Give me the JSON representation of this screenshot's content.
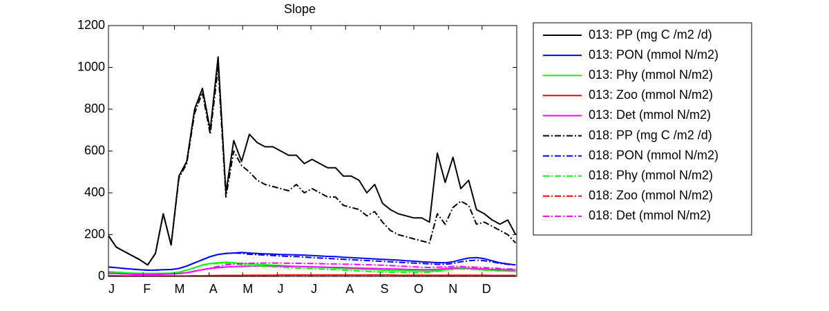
{
  "chart_data": {
    "type": "line",
    "title": "Slope",
    "x": [
      1,
      8,
      15,
      22,
      29,
      36,
      43,
      50,
      57,
      64,
      71,
      78,
      85,
      92,
      99,
      106,
      113,
      120,
      127,
      134,
      141,
      148,
      155,
      162,
      169,
      176,
      183,
      190,
      197,
      204,
      211,
      218,
      225,
      232,
      239,
      246,
      253,
      260,
      267,
      274,
      281,
      288,
      295,
      302,
      309,
      316,
      323,
      330,
      337,
      344,
      351,
      358,
      365
    ],
    "xlim": [
      1,
      366
    ],
    "xticks": [
      {
        "value": 1,
        "label": "J"
      },
      {
        "value": 32,
        "label": "F"
      },
      {
        "value": 60,
        "label": "M"
      },
      {
        "value": 91,
        "label": "A"
      },
      {
        "value": 121,
        "label": "M"
      },
      {
        "value": 152,
        "label": "J"
      },
      {
        "value": 182,
        "label": "J"
      },
      {
        "value": 213,
        "label": "A"
      },
      {
        "value": 244,
        "label": "S"
      },
      {
        "value": 274,
        "label": "O"
      },
      {
        "value": 305,
        "label": "N"
      },
      {
        "value": 335,
        "label": "D"
      }
    ],
    "ylim": [
      0,
      1200
    ],
    "yticks": [
      0,
      200,
      400,
      600,
      800,
      1000,
      1200
    ],
    "grid": false,
    "legend": "outside-right",
    "series": [
      {
        "name": "013: PP (mg C /m2 /d)",
        "color": "#000000",
        "dash": "solid",
        "values": [
          195,
          140,
          120,
          100,
          80,
          55,
          110,
          300,
          150,
          480,
          550,
          800,
          900,
          700,
          1050,
          400,
          650,
          550,
          680,
          640,
          620,
          620,
          600,
          580,
          580,
          540,
          560,
          540,
          520,
          520,
          480,
          480,
          460,
          400,
          440,
          350,
          320,
          300,
          290,
          280,
          280,
          260,
          590,
          450,
          570,
          420,
          460,
          320,
          300,
          270,
          250,
          270,
          200
        ]
      },
      {
        "name": "013: PON (mmol N/m2)",
        "color": "#0000ff",
        "dash": "solid",
        "values": [
          45,
          42,
          38,
          35,
          32,
          30,
          30,
          32,
          33,
          38,
          50,
          65,
          80,
          95,
          105,
          110,
          112,
          115,
          112,
          110,
          108,
          107,
          105,
          104,
          103,
          102,
          100,
          98,
          96,
          95,
          92,
          90,
          88,
          86,
          84,
          82,
          80,
          78,
          75,
          73,
          70,
          68,
          66,
          65,
          70,
          80,
          88,
          90,
          85,
          75,
          65,
          60,
          55
        ]
      },
      {
        "name": "013: Phy (mmol N/m2)",
        "color": "#00ff00",
        "dash": "solid",
        "values": [
          22,
          20,
          18,
          16,
          15,
          14,
          14,
          15,
          16,
          20,
          30,
          42,
          55,
          62,
          65,
          68,
          65,
          62,
          60,
          58,
          56,
          54,
          52,
          50,
          48,
          46,
          45,
          44,
          42,
          40,
          38,
          36,
          35,
          33,
          32,
          30,
          29,
          28,
          27,
          26,
          25,
          25,
          28,
          32,
          36,
          38,
          38,
          35,
          32,
          30,
          28,
          26,
          25
        ]
      },
      {
        "name": "013: Zoo (mmol N/m2)",
        "color": "#ff0000",
        "dash": "solid",
        "values": [
          3,
          3,
          2,
          2,
          2,
          2,
          2,
          2,
          2,
          2,
          2,
          3,
          3,
          4,
          4,
          5,
          5,
          5,
          6,
          6,
          6,
          6,
          7,
          7,
          7,
          7,
          7,
          7,
          7,
          7,
          7,
          7,
          7,
          7,
          7,
          7,
          7,
          6,
          6,
          6,
          6,
          6,
          6,
          6,
          6,
          6,
          6,
          6,
          6,
          5,
          5,
          5,
          5
        ]
      },
      {
        "name": "013: Det (mmol N/m2)",
        "color": "#ff00ff",
        "dash": "solid",
        "values": [
          15,
          14,
          12,
          11,
          10,
          10,
          10,
          11,
          12,
          14,
          18,
          25,
          32,
          38,
          42,
          45,
          47,
          48,
          49,
          50,
          50,
          50,
          49,
          48,
          48,
          47,
          46,
          45,
          44,
          43,
          42,
          41,
          40,
          39,
          38,
          37,
          36,
          35,
          34,
          33,
          32,
          32,
          34,
          38,
          40,
          40,
          39,
          37,
          35,
          33,
          32,
          31,
          30
        ]
      },
      {
        "name": "018: PP (mg C /m2 /d)",
        "color": "#000000",
        "dash": "dashdot",
        "values": [
          195,
          140,
          120,
          100,
          80,
          55,
          110,
          300,
          150,
          470,
          540,
          780,
          880,
          680,
          1000,
          380,
          600,
          530,
          500,
          460,
          440,
          430,
          420,
          410,
          440,
          400,
          420,
          400,
          380,
          380,
          340,
          330,
          320,
          290,
          310,
          260,
          220,
          200,
          190,
          180,
          170,
          160,
          300,
          250,
          330,
          360,
          340,
          250,
          260,
          240,
          220,
          200,
          160
        ]
      },
      {
        "name": "018: PON (mmol N/m2)",
        "color": "#0000ff",
        "dash": "dashdot",
        "values": [
          45,
          42,
          38,
          35,
          32,
          30,
          30,
          32,
          33,
          38,
          50,
          65,
          80,
          95,
          105,
          110,
          112,
          110,
          106,
          104,
          102,
          100,
          98,
          96,
          95,
          93,
          90,
          88,
          86,
          84,
          82,
          80,
          78,
          76,
          74,
          72,
          70,
          68,
          66,
          64,
          62,
          60,
          58,
          58,
          62,
          70,
          75,
          78,
          75,
          70,
          62,
          58,
          55
        ]
      },
      {
        "name": "018: Phy (mmol N/m2)",
        "color": "#00ff00",
        "dash": "dashdot",
        "values": [
          22,
          20,
          18,
          16,
          15,
          14,
          14,
          15,
          16,
          20,
          30,
          42,
          55,
          60,
          62,
          64,
          60,
          56,
          52,
          50,
          48,
          46,
          44,
          42,
          40,
          38,
          37,
          36,
          34,
          32,
          30,
          28,
          26,
          24,
          22,
          21,
          20,
          20,
          19,
          18,
          18,
          20,
          24,
          30,
          34,
          36,
          35,
          32,
          30,
          28,
          26,
          25,
          24
        ]
      },
      {
        "name": "018: Zoo (mmol N/m2)",
        "color": "#ff0000",
        "dash": "dashdot",
        "values": [
          3,
          3,
          2,
          2,
          2,
          2,
          2,
          2,
          2,
          2,
          2,
          3,
          3,
          4,
          4,
          5,
          5,
          5,
          5,
          5,
          5,
          5,
          6,
          6,
          6,
          6,
          6,
          6,
          6,
          6,
          6,
          6,
          6,
          6,
          6,
          6,
          6,
          5,
          5,
          5,
          5,
          5,
          5,
          5,
          5,
          5,
          5,
          5,
          5,
          4,
          4,
          4,
          4
        ]
      },
      {
        "name": "018: Det (mmol N/m2)",
        "color": "#ff00ff",
        "dash": "dashdot",
        "values": [
          15,
          14,
          12,
          11,
          10,
          10,
          10,
          11,
          12,
          14,
          18,
          25,
          32,
          40,
          48,
          55,
          60,
          62,
          63,
          64,
          64,
          64,
          64,
          63,
          63,
          62,
          62,
          61,
          60,
          60,
          59,
          58,
          57,
          56,
          55,
          54,
          52,
          50,
          48,
          46,
          44,
          43,
          44,
          46,
          48,
          48,
          46,
          44,
          42,
          40,
          38,
          36,
          35
        ]
      }
    ]
  }
}
